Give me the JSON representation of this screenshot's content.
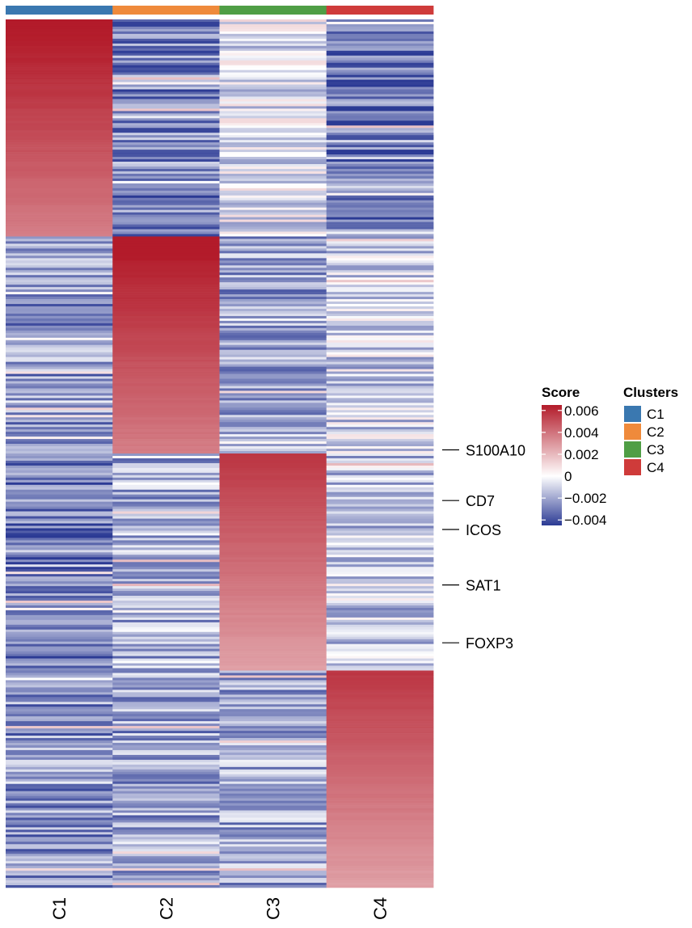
{
  "chart_data": {
    "type": "heatmap",
    "title": "",
    "xlabel": "",
    "ylabel": "",
    "columns": [
      "C1",
      "C2",
      "C3",
      "C4"
    ],
    "cluster_colors": {
      "C1": "#3a78b0",
      "C2": "#ef8a3b",
      "C3": "#4f9e45",
      "C4": "#cf3b3a"
    },
    "row_blocks": [
      {
        "cluster": "C1",
        "rows": 90,
        "mean_scores": [
          0.0055,
          -0.0028,
          -0.0005,
          -0.0032
        ]
      },
      {
        "cluster": "C2",
        "rows": 90,
        "mean_scores": [
          -0.0024,
          0.0055,
          -0.002,
          -0.001
        ]
      },
      {
        "cluster": "C3",
        "rows": 90,
        "mean_scores": [
          -0.003,
          -0.0018,
          0.0045,
          -0.0012
        ]
      },
      {
        "cluster": "C4",
        "rows": 90,
        "mean_scores": [
          -0.0025,
          -0.002,
          -0.002,
          0.0045
        ]
      }
    ],
    "gene_labels": [
      "S100A10",
      "CD7",
      "ICOS",
      "SAT1",
      "FOXP3"
    ],
    "gene_label_rows": [
      178,
      199,
      211,
      234,
      258
    ],
    "color_scale": {
      "name": "Score",
      "min": -0.0045,
      "max": 0.0065,
      "ticks": [
        0.006,
        0.004,
        0.002,
        0,
        -0.002,
        -0.004
      ],
      "tick_labels": [
        "0.006",
        "0.004",
        "0.002",
        "0",
        "−0.002",
        "−0.004"
      ],
      "colors": {
        "low": "#2b3a94",
        "mid": "#ffffff",
        "high": "#b31b2a"
      }
    },
    "cluster_legend": {
      "title": "Clusters",
      "entries": [
        "C1",
        "C2",
        "C3",
        "C4"
      ]
    }
  }
}
